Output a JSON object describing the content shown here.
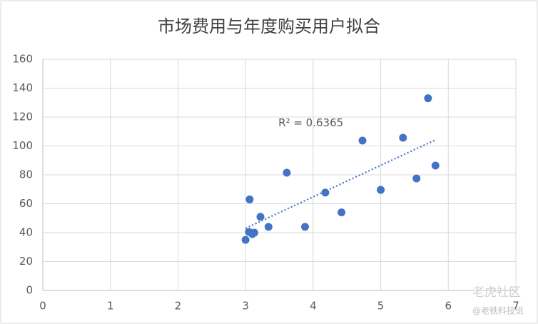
{
  "chart_data": {
    "type": "scatter",
    "title": "市场费用与年度购买用户拟合",
    "x": [
      3.0,
      3.06,
      3.05,
      3.1,
      3.13,
      3.22,
      3.34,
      3.61,
      3.88,
      4.18,
      4.42,
      4.73,
      5.0,
      5.33,
      5.53,
      5.7,
      5.81
    ],
    "series": [
      {
        "color": "#4472c4",
        "values": [
          35,
          63,
          40.5,
          39,
          40,
          51,
          44,
          81.5,
          44,
          67.7,
          54,
          103.7,
          69.6,
          105.7,
          77.5,
          133,
          86.4
        ]
      }
    ],
    "trendline": {
      "x": [
        3.0,
        5.8
      ],
      "values": [
        43,
        104
      ],
      "color": "#4472c4"
    },
    "annotation": "R² = 0.6365",
    "xlim": [
      0,
      7
    ],
    "xticks": [
      0,
      1,
      2,
      3,
      4,
      5,
      6,
      7
    ],
    "ylim": [
      0,
      160
    ],
    "yticks": [
      0,
      20,
      40,
      60,
      80,
      100,
      120,
      140,
      160
    ],
    "grid": true,
    "watermark": [
      "老虎社区",
      "@老铁科技说"
    ]
  }
}
